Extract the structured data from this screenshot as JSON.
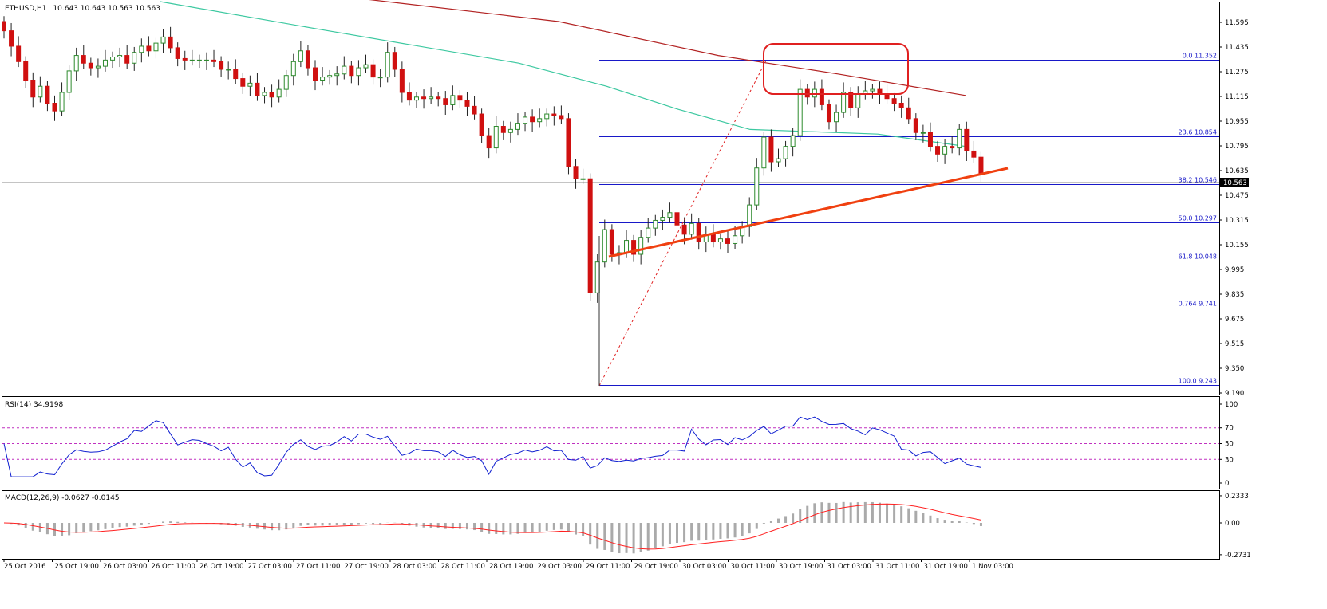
{
  "chart_data": {
    "type": "candlestick",
    "symbol": "ETHUSD,H1",
    "ohlc_header": "10.643 10.643 10.563 10.563",
    "last_price_label": "10.563",
    "last_price": 10.563,
    "price_axis": {
      "range": [
        9.19,
        11.71
      ],
      "ticks": [
        "11.595",
        "11.435",
        "11.275",
        "11.115",
        "10.955",
        "10.795",
        "10.635",
        "10.475",
        "10.315",
        "10.155",
        "9.995",
        "9.835",
        "9.675",
        "9.515",
        "9.350",
        "9.190"
      ]
    },
    "time_labels": [
      "25 Oct 2016",
      "25 Oct 19:00",
      "26 Oct 03:00",
      "26 Oct 11:00",
      "26 Oct 19:00",
      "27 Oct 03:00",
      "27 Oct 11:00",
      "27 Oct 19:00",
      "28 Oct 03:00",
      "28 Oct 11:00",
      "28 Oct 19:00",
      "29 Oct 03:00",
      "29 Oct 11:00",
      "29 Oct 19:00",
      "30 Oct 03:00",
      "30 Oct 11:00",
      "30 Oct 19:00",
      "31 Oct 03:00",
      "31 Oct 11:00",
      "31 Oct 19:00",
      "1 Nov 03:00"
    ],
    "closes": [
      11.54,
      11.44,
      11.34,
      11.22,
      11.11,
      11.18,
      11.07,
      11.02,
      11.14,
      11.28,
      11.38,
      11.33,
      11.3,
      11.31,
      11.35,
      11.37,
      11.38,
      11.33,
      11.4,
      11.44,
      11.41,
      11.46,
      11.5,
      11.43,
      11.36,
      11.35,
      11.35,
      11.35,
      11.35,
      11.34,
      11.29,
      11.29,
      11.23,
      11.18,
      11.2,
      11.12,
      11.14,
      11.11,
      11.16,
      11.25,
      11.34,
      11.41,
      11.3,
      11.22,
      11.24,
      11.25,
      11.26,
      11.31,
      11.25,
      11.3,
      11.32,
      11.24,
      11.24,
      11.4,
      11.29,
      11.14,
      11.09,
      11.11,
      11.1,
      11.11,
      11.1,
      11.06,
      11.12,
      11.09,
      11.05,
      11.0,
      10.86,
      10.78,
      10.92,
      10.88,
      10.9,
      10.94,
      10.98,
      10.95,
      10.97,
      11.0,
      10.99,
      10.97,
      10.66,
      10.58,
      10.58,
      9.84,
      10.04,
      10.25,
      10.09,
      10.1,
      10.18,
      10.09,
      10.2,
      10.26,
      10.31,
      10.33,
      10.36,
      10.28,
      10.22,
      10.29,
      10.17,
      10.22,
      10.17,
      10.19,
      10.16,
      10.21,
      10.27,
      10.41,
      10.65,
      10.85,
      10.69,
      10.71,
      10.79,
      10.86,
      11.16,
      11.11,
      11.16,
      11.06,
      10.95,
      11.01,
      11.14,
      11.04,
      11.13,
      11.15,
      11.16,
      11.13,
      11.1,
      11.07,
      11.04,
      10.97,
      10.88,
      10.88,
      10.79,
      10.74,
      10.79,
      10.78,
      10.9,
      10.76,
      10.72,
      10.61
    ],
    "rsi": {
      "label": "RSI(14) 34.9198",
      "value": 34.9198,
      "levels": [
        70,
        50,
        30
      ],
      "ticks": [
        "100",
        "70",
        "50",
        "30",
        "0"
      ]
    },
    "macd": {
      "label": "MACD(12,26,9) -0.0627 -0.0145",
      "macd": -0.0627,
      "signal": -0.0145,
      "ticks": [
        "0.2333",
        "0.00",
        "-0.2731"
      ]
    },
    "fibonacci": [
      {
        "level": "0.0",
        "price": 11.352,
        "label": "0.0  11.352"
      },
      {
        "level": "23.6",
        "price": 10.854,
        "label": "23.6  10.854"
      },
      {
        "level": "38.2",
        "price": 10.546,
        "label": "38.2  10.546"
      },
      {
        "level": "50.0",
        "price": 10.297,
        "label": "50.0  10.297"
      },
      {
        "level": "61.8",
        "price": 10.048,
        "label": "61.8  10.048"
      },
      {
        "level": "76.4",
        "price": 9.741,
        "label": "0.764  9.741"
      },
      {
        "level": "100.0",
        "price": 9.243,
        "label": "100.0  9.243"
      }
    ],
    "colors": {
      "bull": "#2e8b2e",
      "bear": "#d01010",
      "ma_red": "#b22222",
      "ma_teal": "#3cc8a0",
      "trendline": "#f04010",
      "fib": "#1818c8",
      "rsi_line": "#1020d0",
      "macd_hist": "#aaaaaa",
      "macd_signal": "#ff2020",
      "highlight_box": "#e02020"
    }
  }
}
